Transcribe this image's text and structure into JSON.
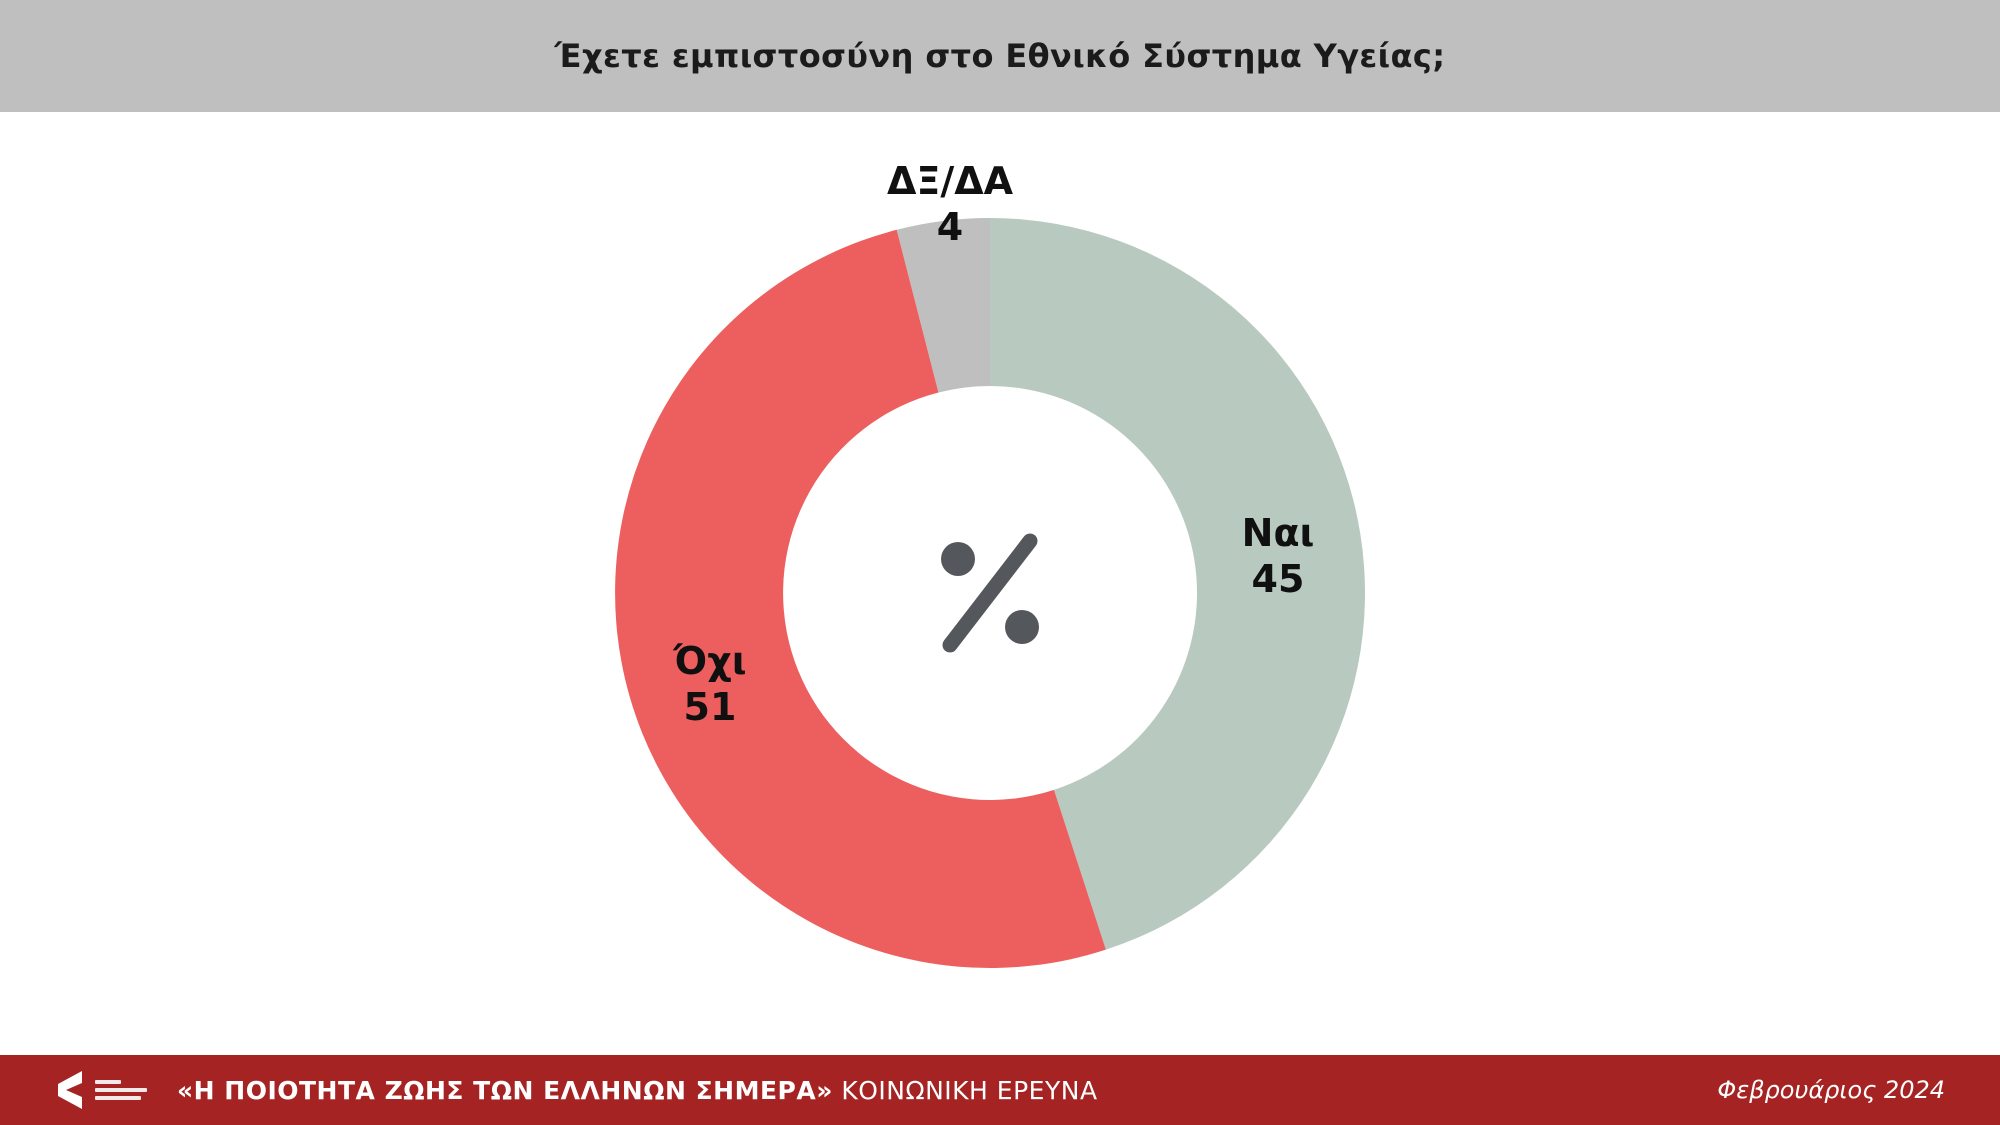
{
  "header": {
    "title": "Έχετε εμπιστοσύνη στο Εθνικό Σύστημα Υγείας;",
    "background": "#bfbfbf"
  },
  "chart_data": {
    "type": "pie",
    "variant": "donut",
    "title": "Έχετε εμπιστοσύνη στο Εθνικό Σύστημα Υγείας;",
    "categories": [
      "Ναι",
      "Όχι",
      "ΔΞ/ΔΑ"
    ],
    "values": [
      45,
      51,
      4
    ],
    "unit": "%",
    "colors": [
      "#b8c9c0",
      "#ed5f5e",
      "#bfbfbf"
    ],
    "start_angle_deg": 0,
    "direction": "clockwise",
    "center_symbol": "%",
    "labels": [
      {
        "name": "Ναι",
        "value": "45"
      },
      {
        "name": "Όχι",
        "value": "51"
      },
      {
        "name": "ΔΞ/ΔΑ",
        "value": "4"
      }
    ]
  },
  "footer": {
    "background": "#a52423",
    "title_bold": "«Η ΠΟΙΟΤΗΤΑ ΖΩΗΣ ΤΩΝ ΕΛΛΗΝΩΝ ΣΗΜΕΡΑ»",
    "title_regular": " ΚΟΙΝΩΝΙΚΗ ΕΡΕΥΝΑ",
    "date": "Φεβρουάριος 2024"
  }
}
